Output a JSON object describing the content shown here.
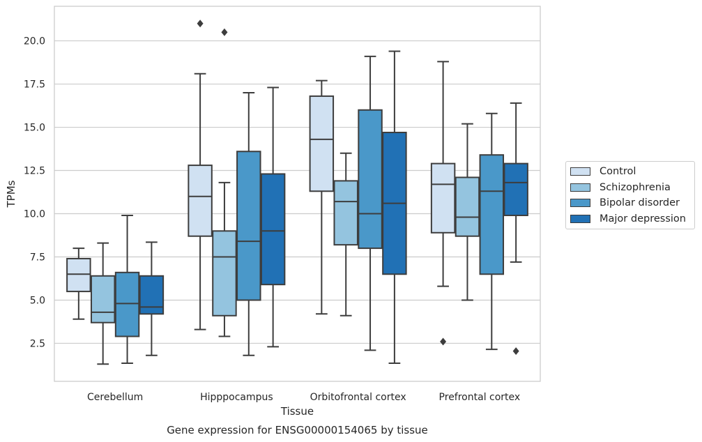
{
  "chart_data": {
    "type": "box",
    "title": "Gene expression for ENSG00000154065 by tissue",
    "xlabel": "Tissue",
    "ylabel": "TPMs",
    "ylim": [
      0.3,
      22.0
    ],
    "yticks": [
      2.5,
      5.0,
      7.5,
      10.0,
      12.5,
      15.0,
      17.5,
      20.0
    ],
    "ytick_labels": [
      "2.5",
      "5.0",
      "7.5",
      "10.0",
      "12.5",
      "15.0",
      "17.5",
      "20.0"
    ],
    "grid": "horizontal",
    "legend_position": "right",
    "categories": [
      "Cerebellum",
      "Hipppocampus",
      "Orbitofrontal cortex",
      "Prefrontal cortex"
    ],
    "series": [
      {
        "name": "Control",
        "color": "#d0e1f2",
        "boxes": [
          {
            "whisker_low": 3.9,
            "q1": 5.5,
            "median": 6.5,
            "q3": 7.4,
            "whisker_high": 8.0,
            "outliers": []
          },
          {
            "whisker_low": 3.3,
            "q1": 8.7,
            "median": 11.0,
            "q3": 12.8,
            "whisker_high": 18.1,
            "outliers": [
              21.0
            ]
          },
          {
            "whisker_low": 4.2,
            "q1": 11.3,
            "median": 14.3,
            "q3": 16.8,
            "whisker_high": 17.7,
            "outliers": []
          },
          {
            "whisker_low": 5.8,
            "q1": 8.9,
            "median": 11.7,
            "q3": 12.9,
            "whisker_high": 18.8,
            "outliers": [
              2.6
            ]
          }
        ]
      },
      {
        "name": "Schizophrenia",
        "color": "#94c4df",
        "boxes": [
          {
            "whisker_low": 1.3,
            "q1": 3.7,
            "median": 4.3,
            "q3": 6.4,
            "whisker_high": 8.3,
            "outliers": []
          },
          {
            "whisker_low": 2.9,
            "q1": 4.1,
            "median": 7.5,
            "q3": 9.0,
            "whisker_high": 11.8,
            "outliers": [
              20.5
            ]
          },
          {
            "whisker_low": 4.1,
            "q1": 8.2,
            "median": 10.7,
            "q3": 11.9,
            "whisker_high": 13.5,
            "outliers": []
          },
          {
            "whisker_low": 5.0,
            "q1": 8.7,
            "median": 9.8,
            "q3": 12.1,
            "whisker_high": 15.2,
            "outliers": []
          }
        ]
      },
      {
        "name": "Bipolar disorder",
        "color": "#4a98c9",
        "boxes": [
          {
            "whisker_low": 1.35,
            "q1": 2.9,
            "median": 4.8,
            "q3": 6.6,
            "whisker_high": 9.9,
            "outliers": []
          },
          {
            "whisker_low": 1.8,
            "q1": 5.0,
            "median": 8.4,
            "q3": 13.6,
            "whisker_high": 17.0,
            "outliers": []
          },
          {
            "whisker_low": 2.1,
            "q1": 8.0,
            "median": 10.0,
            "q3": 16.0,
            "whisker_high": 19.1,
            "outliers": []
          },
          {
            "whisker_low": 2.15,
            "q1": 6.5,
            "median": 11.3,
            "q3": 13.4,
            "whisker_high": 15.8,
            "outliers": []
          }
        ]
      },
      {
        "name": "Major depression",
        "color": "#2171b5",
        "boxes": [
          {
            "whisker_low": 1.8,
            "q1": 4.2,
            "median": 4.6,
            "q3": 6.4,
            "whisker_high": 8.35,
            "outliers": []
          },
          {
            "whisker_low": 2.3,
            "q1": 5.9,
            "median": 9.0,
            "q3": 12.3,
            "whisker_high": 17.3,
            "outliers": []
          },
          {
            "whisker_low": 1.35,
            "q1": 6.5,
            "median": 10.6,
            "q3": 14.7,
            "whisker_high": 19.4,
            "outliers": []
          },
          {
            "whisker_low": 7.2,
            "q1": 9.9,
            "median": 11.8,
            "q3": 12.9,
            "whisker_high": 16.4,
            "outliers": [
              2.05
            ]
          }
        ]
      }
    ]
  }
}
